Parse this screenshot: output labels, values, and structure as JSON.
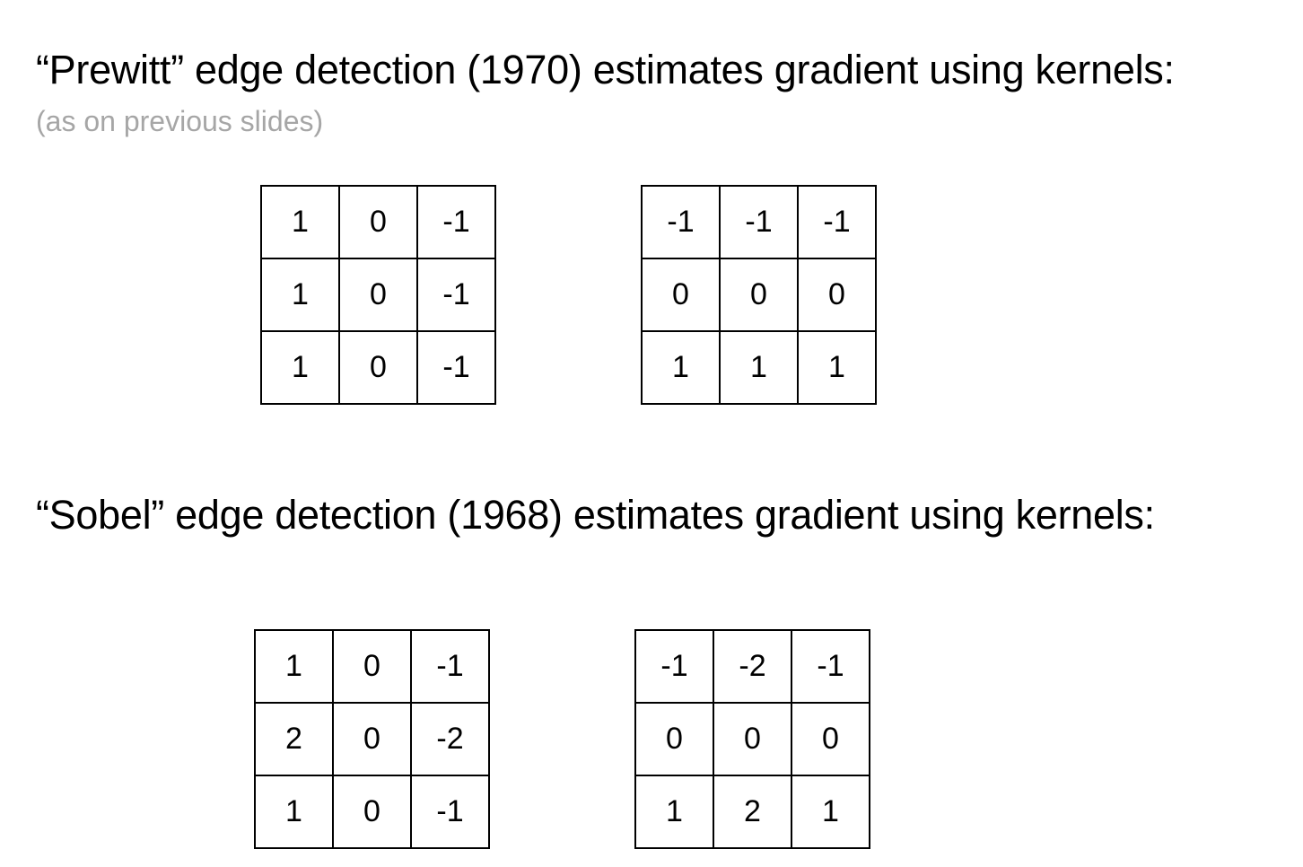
{
  "prewitt": {
    "heading": "“Prewitt” edge detection (1970) estimates gradient using kernels:",
    "subtitle": "(as on previous slides)",
    "kernel_x": [
      [
        "1",
        "0",
        "-1"
      ],
      [
        "1",
        "0",
        "-1"
      ],
      [
        "1",
        "0",
        "-1"
      ]
    ],
    "kernel_y": [
      [
        "-1",
        "-1",
        "-1"
      ],
      [
        "0",
        "0",
        "0"
      ],
      [
        "1",
        "1",
        "1"
      ]
    ]
  },
  "sobel": {
    "heading": "“Sobel” edge detection (1968) estimates gradient using kernels:",
    "kernel_x": [
      [
        "1",
        "0",
        "-1"
      ],
      [
        "2",
        "0",
        "-2"
      ],
      [
        "1",
        "0",
        "-1"
      ]
    ],
    "kernel_y": [
      [
        "-1",
        "-2",
        "-1"
      ],
      [
        "0",
        "0",
        "0"
      ],
      [
        "1",
        "2",
        "1"
      ]
    ]
  },
  "colors": {
    "text": "#000000",
    "subtitle": "#a6a6a6",
    "background": "#ffffff"
  }
}
